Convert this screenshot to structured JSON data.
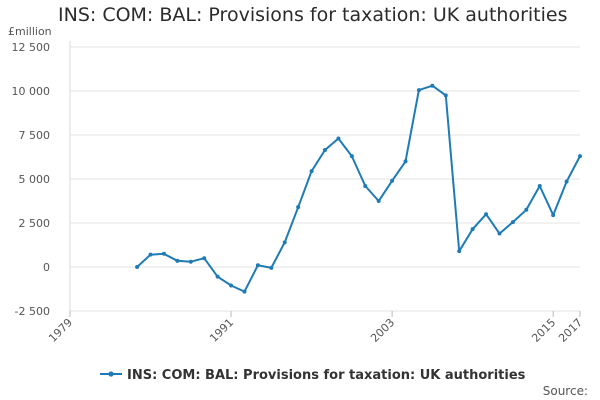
{
  "chart_data": {
    "type": "line",
    "title": "INS: COM: BAL: Provisions for taxation: UK authorities",
    "ylabel": "£million",
    "xlabel": "",
    "ylim": [
      -2500,
      12500
    ],
    "yticks": [
      -2500,
      0,
      2500,
      5000,
      7500,
      10000,
      12500
    ],
    "ytick_labels": [
      "-2 500",
      "0",
      "2 500",
      "5 000",
      "7 500",
      "10 000",
      "12 500"
    ],
    "xlim": [
      1979,
      2017
    ],
    "xticks": [
      1979,
      1991,
      2003,
      2015,
      2017
    ],
    "xtick_labels": [
      "1979",
      "1991",
      "2003",
      "2015",
      "2017"
    ],
    "grid": true,
    "legend_position": "bottom",
    "source_label": "Source:",
    "series": [
      {
        "name": "INS: COM: BAL: Provisions for taxation: UK authorities",
        "color": "#1f7bb6",
        "x": [
          1984,
          1985,
          1986,
          1987,
          1988,
          1989,
          1990,
          1991,
          1992,
          1993,
          1994,
          1995,
          1996,
          1997,
          1998,
          1999,
          2000,
          2001,
          2002,
          2003,
          2004,
          2005,
          2006,
          2007,
          2008,
          2009,
          2010,
          2011,
          2012,
          2013,
          2014,
          2015,
          2016,
          2017
        ],
        "values": [
          0,
          700,
          750,
          350,
          300,
          500,
          -550,
          -1050,
          -1400,
          100,
          -50,
          1400,
          3400,
          5450,
          6650,
          7300,
          6300,
          4600,
          3750,
          4900,
          6000,
          10050,
          10300,
          9750,
          900,
          2150,
          3000,
          1900,
          2550,
          3250,
          4600,
          2950,
          4850,
          6300
        ]
      }
    ]
  }
}
